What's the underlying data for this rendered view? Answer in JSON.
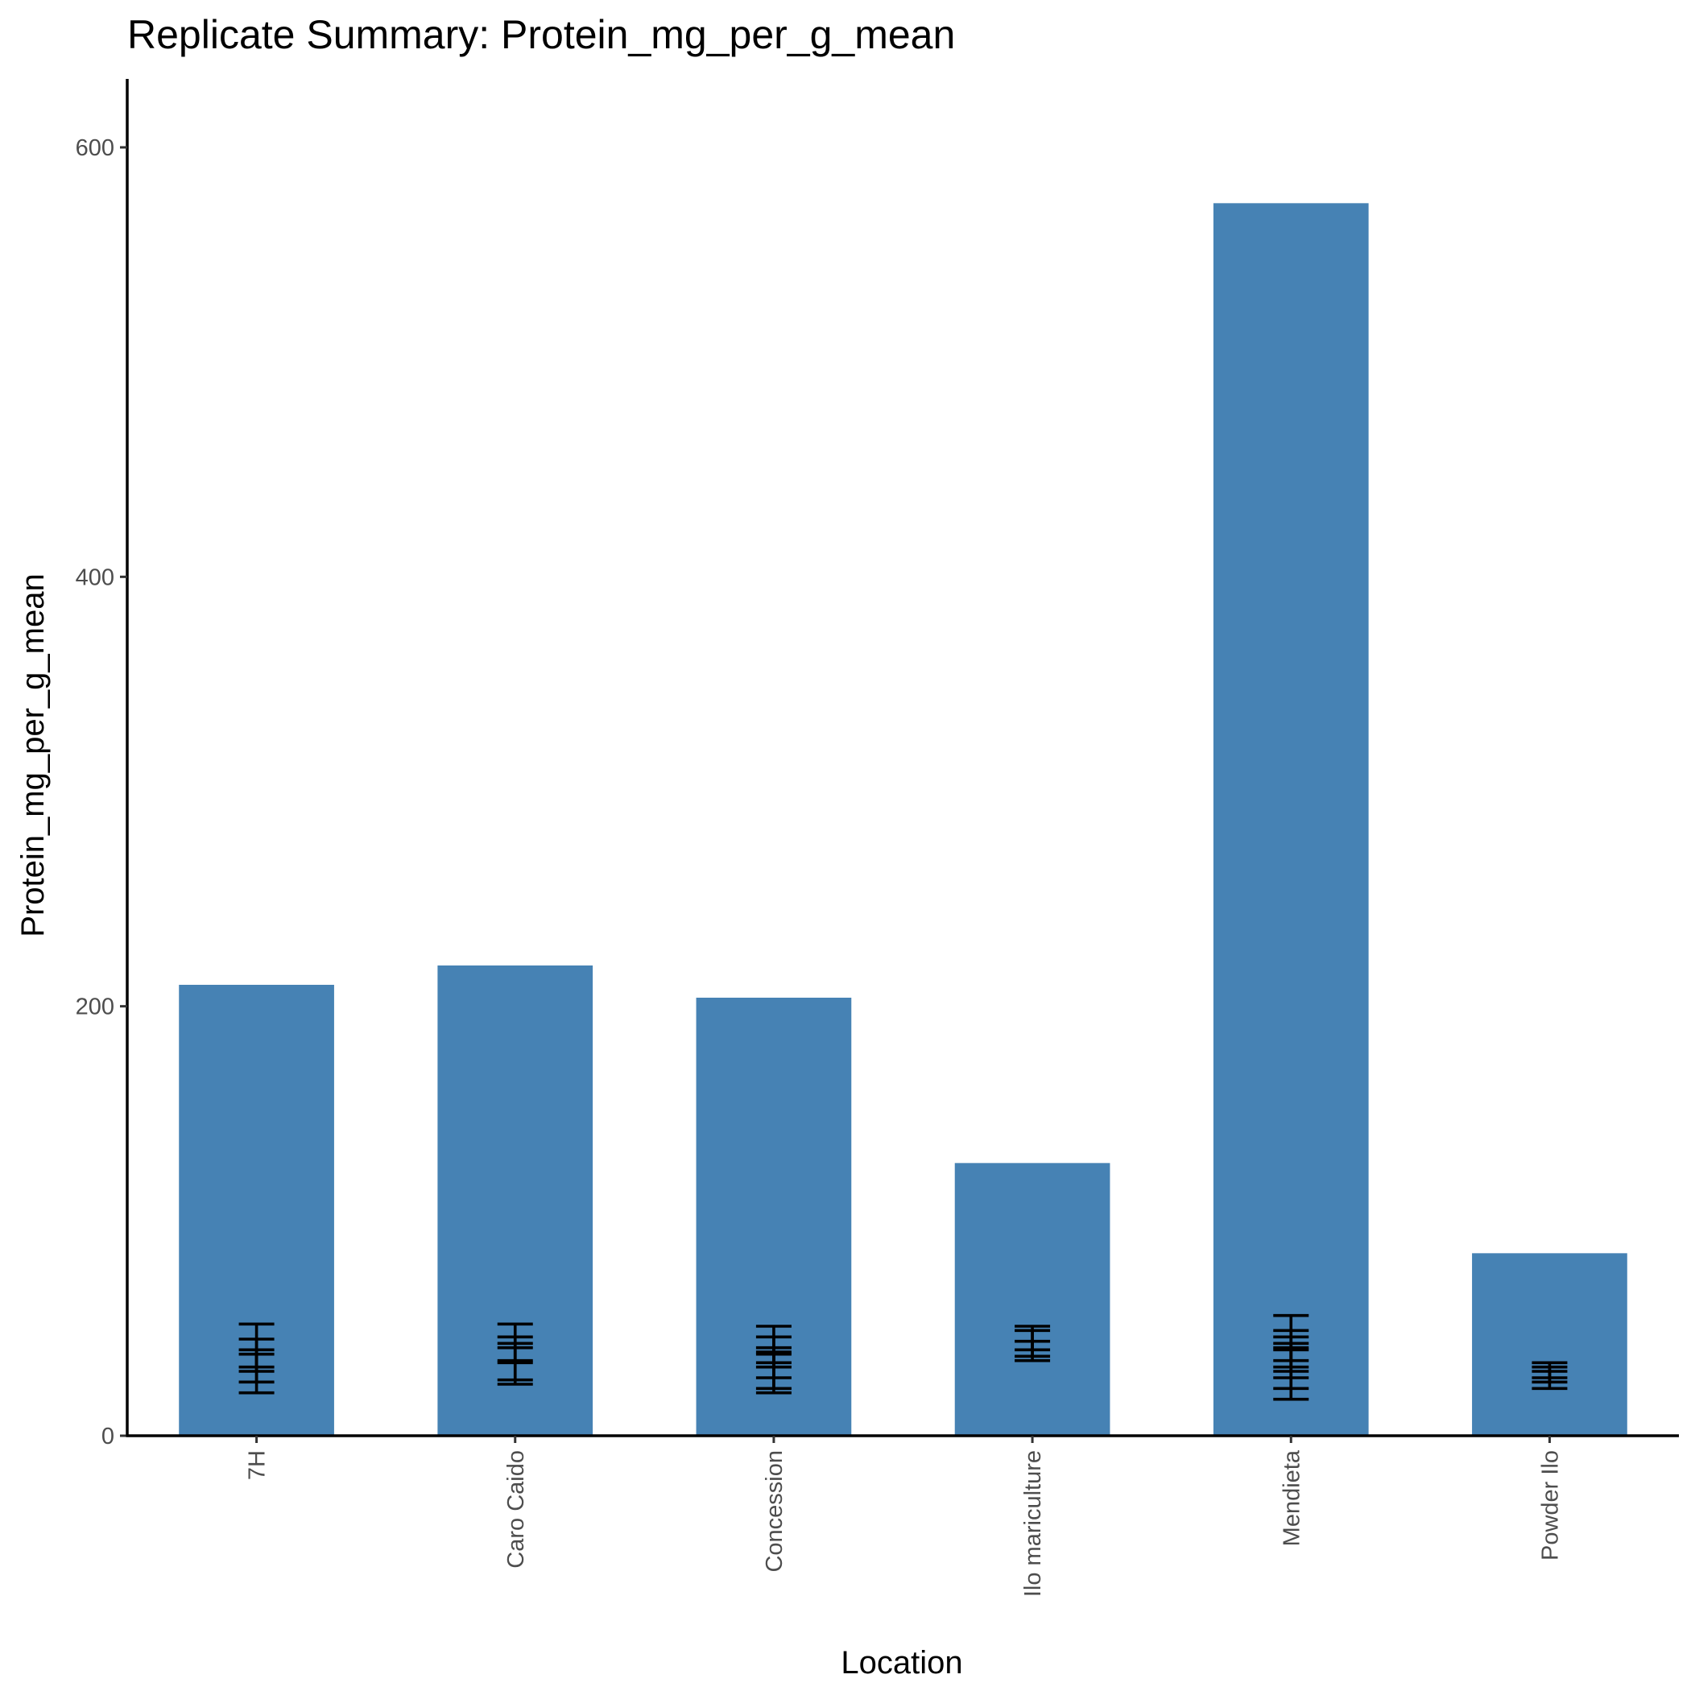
{
  "chart_data": {
    "type": "bar",
    "title": "Replicate Summary: Protein_mg_per_g_mean",
    "xlabel": "Location",
    "ylabel": "Protein_mg_per_g_mean",
    "ylim": [
      0,
      632
    ],
    "yticks": [
      0,
      200,
      400,
      600
    ],
    "grid": false,
    "legend": "none",
    "bar_color": "#4682B4",
    "errorbar_color": "#000000",
    "categories": [
      "7H",
      "Caro Caido",
      "Concession",
      "Ilo mariculture",
      "Mendieta",
      "Powder Ilo"
    ],
    "values": [
      210,
      219,
      204,
      127,
      574,
      85
    ],
    "replicate_errorbars": [
      [
        [
          20,
          52
        ],
        [
          25,
          45
        ],
        [
          30,
          40
        ],
        [
          32,
          38
        ]
      ],
      [
        [
          24,
          52
        ],
        [
          26,
          46
        ],
        [
          34,
          43
        ],
        [
          35,
          41
        ]
      ],
      [
        [
          20,
          51
        ],
        [
          22,
          46
        ],
        [
          27,
          41
        ],
        [
          32,
          39
        ],
        [
          34,
          38
        ]
      ],
      [
        [
          35,
          51
        ],
        [
          37,
          49
        ],
        [
          40,
          44
        ]
      ],
      [
        [
          17,
          56
        ],
        [
          22,
          49
        ],
        [
          27,
          46
        ],
        [
          30,
          43
        ],
        [
          32,
          41
        ],
        [
          35,
          40
        ]
      ],
      [
        [
          22,
          34
        ],
        [
          25,
          32
        ],
        [
          27,
          30
        ]
      ]
    ]
  }
}
